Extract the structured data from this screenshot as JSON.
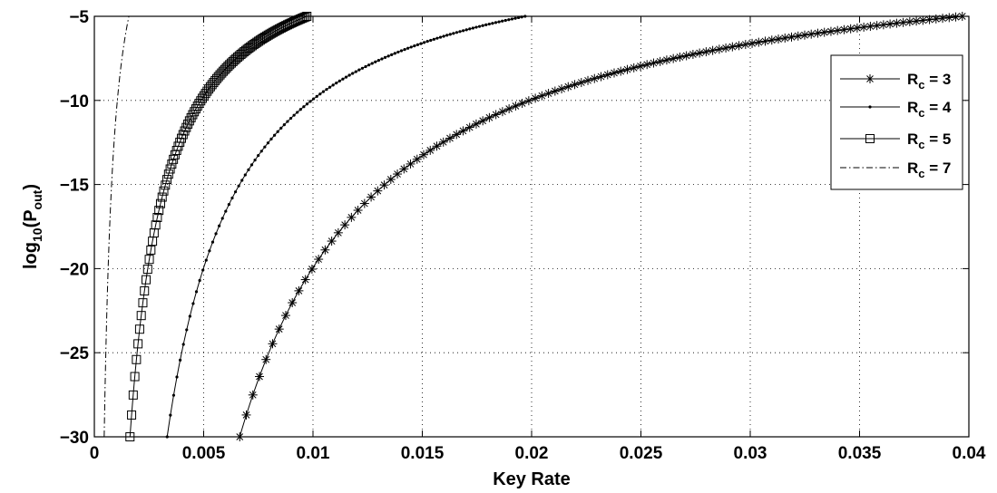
{
  "chart_data": {
    "type": "line",
    "xlabel": "Key Rate",
    "ylabel_main": "log",
    "ylabel_sub": "10",
    "ylabel_paren_open": "(P",
    "ylabel_paren_sub": "out",
    "ylabel_paren_close": ")",
    "xlim": [
      0,
      0.04
    ],
    "ylim": [
      -30,
      -5
    ],
    "xticks": [
      0,
      0.005,
      0.01,
      0.015,
      0.02,
      0.025,
      0.03,
      0.035,
      0.04
    ],
    "xtick_labels": [
      "0",
      "0.005",
      "0.01",
      "0.015",
      "0.02",
      "0.025",
      "0.03",
      "0.035",
      "0.04"
    ],
    "yticks": [
      -5,
      -10,
      -15,
      -20,
      -25,
      -30
    ],
    "ytick_labels": [
      "−5",
      "−10",
      "−15",
      "−20",
      "−25",
      "−30"
    ],
    "grid": true,
    "legend_position": "top-right",
    "series": [
      {
        "name_main": "R",
        "name_sub": "c",
        "name_rest": " = 3",
        "marker": "asterisk",
        "line": "solid",
        "x_at_bottom": 0.00665,
        "x_at_top": 0.0397
      },
      {
        "name_main": "R",
        "name_sub": "c",
        "name_rest": " = 4",
        "marker": "dot",
        "line": "solid",
        "x_at_bottom": 0.00333,
        "x_at_top": 0.0197
      },
      {
        "name_main": "R",
        "name_sub": "c",
        "name_rest": " = 5",
        "marker": "square",
        "line": "solid",
        "x_at_bottom": 0.00163,
        "x_at_top": 0.00972
      },
      {
        "name_main": "R",
        "name_sub": "c",
        "name_rest": " = 7",
        "marker": "none",
        "line": "dashdot",
        "x_at_bottom": 0.00045,
        "x_at_top": 0.00158
      }
    ]
  }
}
